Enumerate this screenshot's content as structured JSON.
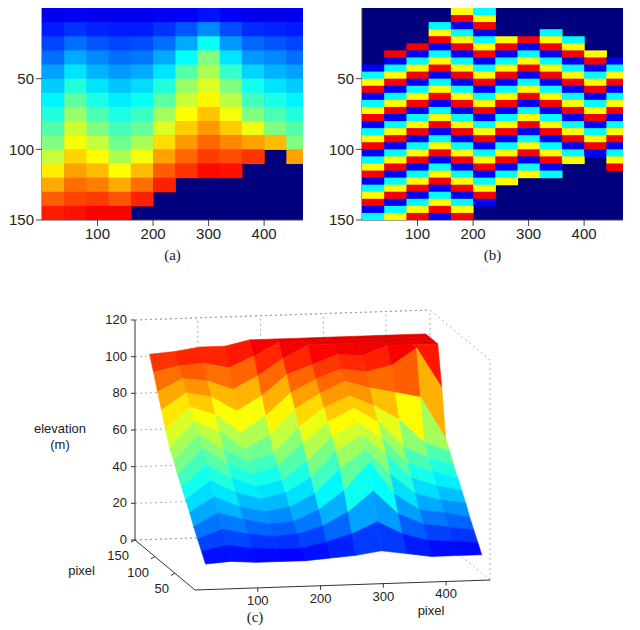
{
  "chart_data": [
    {
      "type": "heatmap",
      "title": "(a)",
      "color": "jet",
      "x": [
        20,
        60,
        100,
        140,
        180,
        220,
        260,
        300,
        340,
        380,
        420,
        460
      ],
      "y": [
        5,
        15,
        25,
        35,
        45,
        55,
        65,
        75,
        85,
        95,
        105,
        115,
        125,
        135,
        145
      ],
      "values": [
        [
          13,
          14,
          13,
          13,
          13,
          14,
          15,
          17,
          15,
          13,
          13,
          13
        ],
        [
          18,
          21,
          19,
          18,
          18,
          21,
          25,
          31,
          24,
          20,
          19,
          18
        ],
        [
          23,
          28,
          25,
          23,
          24,
          28,
          35,
          46,
          33,
          27,
          25,
          23
        ],
        [
          28,
          35,
          31,
          28,
          29,
          35,
          45,
          60,
          42,
          33,
          31,
          28
        ],
        [
          34,
          42,
          36,
          33,
          35,
          42,
          55,
          65,
          51,
          40,
          36,
          34
        ],
        [
          39,
          49,
          42,
          38,
          41,
          49,
          63,
          71,
          60,
          47,
          42,
          39
        ],
        [
          44,
          56,
          48,
          43,
          46,
          56,
          69,
          76,
          67,
          53,
          48,
          44
        ],
        [
          49,
          63,
          54,
          48,
          52,
          64,
          75,
          82,
          74,
          60,
          54,
          49
        ],
        [
          55,
          69,
          60,
          53,
          57,
          71,
          81,
          87,
          81,
          73,
          60,
          55
        ],
        [
          60,
          74,
          68,
          58,
          65,
          79,
          87,
          93,
          89,
          86,
          83,
          60
        ],
        [
          68,
          80,
          75,
          65,
          74,
          86,
          93,
          98,
          96,
          99,
          null,
          86
        ],
        [
          77,
          86,
          83,
          75,
          83,
          94,
          99,
          104,
          103,
          null,
          null,
          null
        ],
        [
          85,
          92,
          90,
          85,
          92,
          101,
          null,
          null,
          null,
          null,
          null,
          null
        ],
        [
          94,
          97,
          98,
          95,
          101,
          null,
          null,
          null,
          null,
          null,
          null,
          null
        ],
        [
          102,
          103,
          105,
          105,
          null,
          null,
          null,
          null,
          null,
          null,
          null,
          null
        ]
      ],
      "xlim": [
        0,
        470
      ],
      "ylim": [
        0,
        150
      ],
      "xticks": [
        100,
        200,
        300,
        400
      ],
      "yticks": [
        50,
        100,
        150
      ],
      "zlim": [
        0,
        120
      ]
    },
    {
      "type": "heatmap",
      "title": "(b)",
      "color": "jet",
      "x": [
        20,
        60,
        100,
        140,
        180,
        220,
        260,
        300,
        340,
        380,
        420,
        460
      ],
      "y": [
        2.5,
        7.5,
        12.5,
        17.5,
        22.5,
        27.5,
        32.5,
        37.5,
        42.5,
        47.5,
        52.5,
        57.5,
        62.5,
        67.5,
        72.5,
        77.5,
        82.5,
        87.5,
        92.5,
        97.5,
        102.5,
        107.5,
        112.5,
        117.5,
        122.5,
        127.5,
        132.5,
        137.5,
        142.5,
        147.5
      ],
      "values": [
        [
          null,
          null,
          null,
          null,
          0.8,
          -0.8,
          null,
          null,
          null,
          null,
          null,
          null
        ],
        [
          null,
          null,
          null,
          null,
          2.4,
          0.8,
          null,
          null,
          null,
          null,
          null,
          null
        ],
        [
          null,
          null,
          null,
          -0.8,
          -2.4,
          2.4,
          null,
          null,
          null,
          null,
          null,
          null
        ],
        [
          null,
          null,
          null,
          0.8,
          -0.8,
          -2.4,
          null,
          null,
          -0.8,
          null,
          null,
          null
        ],
        [
          null,
          null,
          null,
          2.4,
          0.8,
          -0.8,
          0.8,
          2.4,
          0.8,
          -0.8,
          null,
          null
        ],
        [
          null,
          null,
          2.4,
          -2.4,
          2.4,
          0.8,
          2.4,
          -2.4,
          2.4,
          0.8,
          null,
          null
        ],
        [
          null,
          2.4,
          -2.4,
          -0.8,
          -2.4,
          2.4,
          -2.4,
          -0.8,
          -2.4,
          2.4,
          0.8,
          null
        ],
        [
          null,
          -2.4,
          -0.8,
          0.8,
          -0.8,
          -2.4,
          -0.8,
          0.8,
          -0.8,
          -2.4,
          2.4,
          -2.4
        ],
        [
          -2.4,
          -0.8,
          0.8,
          2.4,
          0.8,
          -0.8,
          0.8,
          2.4,
          0.8,
          -0.8,
          -2.4,
          -0.8
        ],
        [
          -0.8,
          0.8,
          2.4,
          -2.4,
          2.4,
          0.8,
          2.4,
          -2.4,
          2.4,
          0.8,
          -0.8,
          0.8
        ],
        [
          0.8,
          2.4,
          -2.4,
          -0.8,
          -2.4,
          2.4,
          -2.4,
          -0.8,
          -2.4,
          2.4,
          0.8,
          2.4
        ],
        [
          2.4,
          -2.4,
          -0.8,
          0.8,
          -0.8,
          -2.4,
          -0.8,
          0.8,
          -0.8,
          -2.4,
          2.4,
          -2.4
        ],
        [
          -2.4,
          -0.8,
          0.8,
          2.4,
          0.8,
          -0.8,
          0.8,
          2.4,
          0.8,
          -0.8,
          -2.4,
          -0.8
        ],
        [
          -0.8,
          0.8,
          2.4,
          -2.4,
          2.4,
          0.8,
          2.4,
          -2.4,
          2.4,
          0.8,
          -0.8,
          0.8
        ],
        [
          0.8,
          2.4,
          -2.4,
          -0.8,
          -2.4,
          2.4,
          -2.4,
          -0.8,
          -2.4,
          2.4,
          0.8,
          2.4
        ],
        [
          2.4,
          -2.4,
          -0.8,
          0.8,
          -0.8,
          -2.4,
          -0.8,
          0.8,
          -0.8,
          -2.4,
          2.4,
          -2.4
        ],
        [
          -2.4,
          -0.8,
          0.8,
          2.4,
          0.8,
          -0.8,
          0.8,
          2.4,
          0.8,
          -0.8,
          -2.4,
          -0.8
        ],
        [
          -0.8,
          0.8,
          2.4,
          -2.4,
          2.4,
          0.8,
          2.4,
          -2.4,
          2.4,
          0.8,
          -0.8,
          0.8
        ],
        [
          0.8,
          2.4,
          -2.4,
          -0.8,
          -2.4,
          2.4,
          -2.4,
          -0.8,
          -2.4,
          2.4,
          0.8,
          2.4
        ],
        [
          2.4,
          -2.4,
          -0.8,
          0.8,
          -0.8,
          -2.4,
          -0.8,
          0.8,
          -0.8,
          -2.4,
          2.4,
          -2.4
        ],
        [
          -2.4,
          -0.8,
          0.8,
          2.4,
          0.8,
          -0.8,
          0.8,
          2.4,
          0.8,
          -0.8,
          -2.4,
          -0.8
        ],
        [
          -0.8,
          0.8,
          2.4,
          -2.4,
          2.4,
          0.8,
          2.4,
          -2.4,
          2.4,
          0.8,
          null,
          0.8
        ],
        [
          0.8,
          2.4,
          -2.4,
          -0.8,
          -2.4,
          2.4,
          -2.4,
          -0.8,
          -2.4,
          null,
          null,
          2.4
        ],
        [
          2.4,
          -2.4,
          -0.8,
          0.8,
          -0.8,
          -2.4,
          -0.8,
          0.8,
          -0.8,
          null,
          null,
          null
        ],
        [
          -2.4,
          -0.8,
          0.8,
          2.4,
          0.8,
          -0.8,
          0.8,
          null,
          null,
          null,
          null,
          null
        ],
        [
          -0.8,
          0.8,
          2.4,
          -2.4,
          2.4,
          0.8,
          null,
          null,
          null,
          null,
          null,
          null
        ],
        [
          0.8,
          2.4,
          -2.4,
          -0.8,
          -2.4,
          2.4,
          null,
          null,
          null,
          null,
          null,
          null
        ],
        [
          2.4,
          -2.4,
          -0.8,
          0.8,
          -0.8,
          -2.4,
          null,
          null,
          null,
          null,
          null,
          null
        ],
        [
          -2.4,
          -0.8,
          0.8,
          2.4,
          0.8,
          null,
          null,
          null,
          null,
          null,
          null,
          null
        ],
        [
          -0.8,
          0.8,
          2.4,
          -2.4,
          2.4,
          null,
          null,
          null,
          null,
          null,
          null,
          null
        ]
      ],
      "xlim": [
        0,
        470
      ],
      "ylim": [
        0,
        150
      ],
      "xticks": [
        100,
        200,
        300,
        400
      ],
      "yticks": [
        50,
        100,
        150
      ],
      "zlim": [
        -3.14,
        3.14
      ]
    },
    {
      "type": "surface",
      "title": "(c)",
      "color": "jet",
      "xlabel": "pixel",
      "ylabel": "pixel",
      "zlabel": "elevation (m)",
      "x": [
        20,
        60,
        100,
        140,
        180,
        220,
        260,
        300,
        340,
        380,
        420,
        460
      ],
      "y": [
        5,
        15,
        25,
        35,
        45,
        55,
        65,
        75,
        85,
        95,
        105,
        115,
        125,
        135,
        145
      ],
      "values": [
        [
          13,
          14,
          13,
          13,
          13,
          14,
          15,
          17,
          15,
          13,
          13,
          13
        ],
        [
          18,
          21,
          19,
          18,
          18,
          21,
          25,
          31,
          24,
          20,
          19,
          18
        ],
        [
          23,
          28,
          25,
          23,
          24,
          28,
          35,
          46,
          33,
          27,
          25,
          23
        ],
        [
          28,
          35,
          31,
          28,
          29,
          35,
          45,
          60,
          42,
          33,
          31,
          28
        ],
        [
          34,
          42,
          36,
          33,
          35,
          42,
          55,
          65,
          51,
          40,
          36,
          34
        ],
        [
          39,
          49,
          42,
          38,
          41,
          49,
          63,
          71,
          60,
          47,
          42,
          39
        ],
        [
          44,
          56,
          48,
          43,
          46,
          56,
          69,
          76,
          67,
          53,
          48,
          44
        ],
        [
          49,
          63,
          54,
          48,
          52,
          64,
          75,
          82,
          74,
          60,
          54,
          49
        ],
        [
          55,
          69,
          60,
          53,
          57,
          71,
          81,
          87,
          81,
          73,
          60,
          55
        ],
        [
          60,
          74,
          68,
          58,
          65,
          79,
          87,
          93,
          89,
          86,
          83,
          60
        ],
        [
          68,
          80,
          75,
          65,
          74,
          86,
          93,
          98,
          96,
          99,
          108,
          86
        ],
        [
          77,
          86,
          83,
          75,
          83,
          94,
          99,
          104,
          103,
          108,
          108,
          108
        ],
        [
          85,
          92,
          90,
          85,
          92,
          101,
          108,
          108,
          108,
          108,
          108,
          108
        ],
        [
          94,
          97,
          98,
          95,
          101,
          108,
          108,
          108,
          108,
          108,
          108,
          108
        ],
        [
          102,
          103,
          105,
          105,
          108,
          108,
          108,
          108,
          108,
          108,
          108,
          108
        ]
      ],
      "xlim": [
        0,
        470
      ],
      "ylim": [
        0,
        150
      ],
      "zlim": [
        0,
        120
      ],
      "xticks": [
        100,
        200,
        300,
        400
      ],
      "yticks": [
        50,
        100,
        150
      ],
      "zticks": [
        0,
        20,
        40,
        60,
        80,
        100,
        120
      ]
    }
  ]
}
